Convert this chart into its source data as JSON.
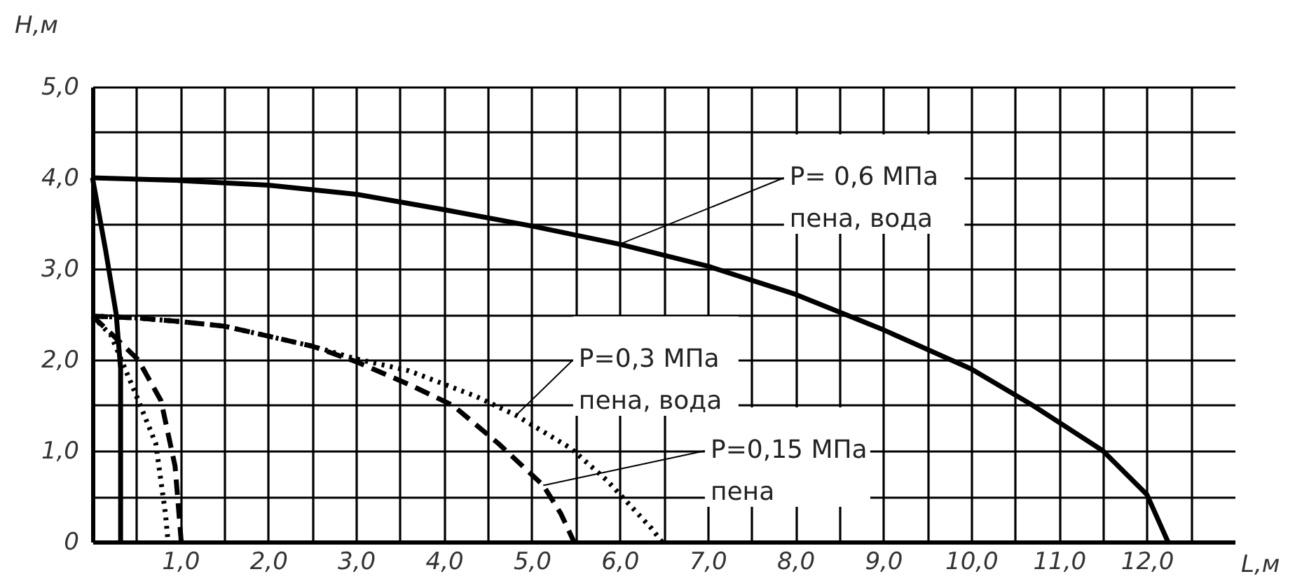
{
  "chart_data": {
    "type": "line",
    "xlabel": "L,м",
    "ylabel": "H,м",
    "xlim": [
      0,
      13
    ],
    "ylim": [
      0,
      5
    ],
    "xticks": [
      {
        "value": 0.5,
        "label": null
      },
      {
        "value": 1,
        "label": "1,0"
      },
      {
        "value": 1.5,
        "label": null
      },
      {
        "value": 2,
        "label": "2,0"
      },
      {
        "value": 2.5,
        "label": null
      },
      {
        "value": 3,
        "label": "3,0"
      },
      {
        "value": 3.5,
        "label": null
      },
      {
        "value": 4,
        "label": "4,0"
      },
      {
        "value": 4.5,
        "label": null
      },
      {
        "value": 5,
        "label": "5,0"
      },
      {
        "value": 5.5,
        "label": null
      },
      {
        "value": 6,
        "label": "6,0"
      },
      {
        "value": 6.5,
        "label": null
      },
      {
        "value": 7,
        "label": "7,0"
      },
      {
        "value": 7.5,
        "label": null
      },
      {
        "value": 8,
        "label": "8,0"
      },
      {
        "value": 8.5,
        "label": null
      },
      {
        "value": 9,
        "label": "9,0"
      },
      {
        "value": 9.5,
        "label": null
      },
      {
        "value": 10,
        "label": "10,0"
      },
      {
        "value": 10.5,
        "label": null
      },
      {
        "value": 11,
        "label": "11,0"
      },
      {
        "value": 11.5,
        "label": null
      },
      {
        "value": 12,
        "label": "12,0"
      },
      {
        "value": 12.5,
        "label": null
      }
    ],
    "yticks": [
      0,
      {
        "value": 0.5,
        "label": null
      },
      {
        "value": 1,
        "label": "1,0"
      },
      {
        "value": 1.5,
        "label": null
      },
      {
        "value": 2,
        "label": "2,0"
      },
      {
        "value": 2.5,
        "label": null
      },
      {
        "value": 3,
        "label": "3,0"
      },
      {
        "value": 3.5,
        "label": null
      },
      {
        "value": 4,
        "label": "4,0"
      },
      {
        "value": 4.5,
        "label": null
      },
      {
        "value": 5,
        "label": "5,0"
      }
    ],
    "grid": true,
    "series": [
      {
        "color": "#000000",
        "line_style": "solid",
        "x": [
          0,
          1,
          2,
          3,
          4,
          5,
          6,
          7,
          8,
          9,
          10,
          10.7,
          11.5,
          12,
          12.24
        ],
        "values": [
          4.0,
          3.97,
          3.92,
          3.82,
          3.65,
          3.47,
          3.27,
          3.03,
          2.72,
          2.33,
          1.9,
          1.5,
          1.0,
          0.52,
          0
        ]
      },
      {
        "color": "#000000",
        "line_style": "dotted",
        "x": [
          0,
          0.5,
          1,
          1.5,
          2,
          2.5,
          3,
          3.6,
          4.36,
          4.82,
          5.44,
          5.85,
          6.36,
          6.48
        ],
        "values": [
          2.48,
          2.46,
          2.42,
          2.37,
          2.26,
          2.15,
          2.01,
          1.88,
          1.6,
          1.39,
          1.03,
          0.68,
          0.15,
          0
        ]
      },
      {
        "color": "#000000",
        "line_style": "dashed",
        "x": [
          0,
          0.5,
          1,
          1.5,
          2,
          2.5,
          3,
          3.6,
          4.1,
          4.62,
          5.13,
          5.33,
          5.48
        ],
        "values": [
          2.48,
          2.46,
          2.42,
          2.37,
          2.26,
          2.15,
          1.98,
          1.73,
          1.5,
          1.08,
          0.62,
          0.31,
          0
        ]
      },
      {
        "color": "#000000",
        "line_style": "solid",
        "x": [
          0,
          0.15,
          0.27,
          0.32,
          0.32
        ],
        "values": [
          4.0,
          3.2,
          2.5,
          1.9,
          0
        ]
      },
      {
        "color": "#000000",
        "line_style": "dashed",
        "x": [
          0,
          0.2,
          0.52,
          0.78,
          0.94,
          1.01
        ],
        "values": [
          2.48,
          2.3,
          2.0,
          1.55,
          0.83,
          0
        ]
      },
      {
        "color": "#000000",
        "line_style": "dotted",
        "x": [
          0,
          0.21,
          0.48,
          0.72,
          0.83,
          0.86
        ],
        "values": [
          2.48,
          2.27,
          1.65,
          1.08,
          0.31,
          0
        ]
      }
    ],
    "annotations": [
      {
        "text": "P= 0,6  МПа\nпена, вода",
        "x": 6.0,
        "y": 3.27
      },
      {
        "text": "P=0,3 МПа\nпена, вода",
        "x": 4.82,
        "y": 1.39
      },
      {
        "text": "P=0,15 МПа\nпена",
        "x": 5.13,
        "y": 0.62
      }
    ]
  }
}
